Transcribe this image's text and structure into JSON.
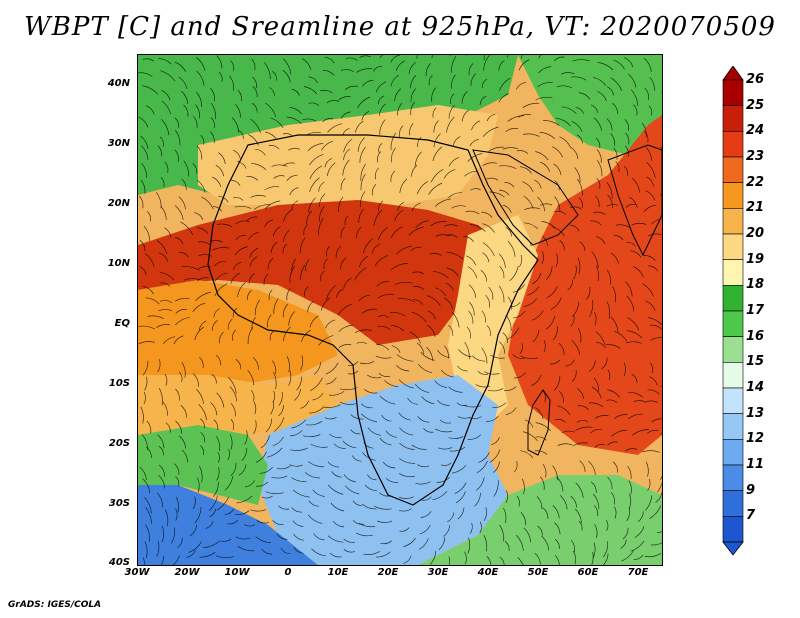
{
  "title": "WBPT [C] and Sreamline at 925hPa, VT: 2020070509",
  "footer": "GrADS: IGES/COLA",
  "axes": {
    "y_labels": [
      "40N",
      "30N",
      "20N",
      "10N",
      "EQ",
      "10S",
      "20S",
      "30S",
      "40S"
    ],
    "x_labels": [
      "30W",
      "20W",
      "10W",
      "0",
      "10E",
      "20E",
      "30E",
      "40E",
      "50E",
      "60E",
      "70E"
    ]
  },
  "colorbar": {
    "labels": [
      "26",
      "25",
      "24",
      "23",
      "22",
      "21",
      "20",
      "19",
      "18",
      "17",
      "16",
      "15",
      "14",
      "13",
      "12",
      "11",
      "9",
      "7"
    ],
    "colors": [
      "#a80000",
      "#c81e0a",
      "#e63c16",
      "#f06a1e",
      "#f5961e",
      "#f7b44a",
      "#fdd883",
      "#fff5b0",
      "#31b331",
      "#4ec84a",
      "#9be090",
      "#e6fae8",
      "#c3e3fa",
      "#96c8f5",
      "#6eaaf0",
      "#4b8ce6",
      "#2e6fdc",
      "#1e56cf"
    ]
  },
  "map": {
    "background": "#f2b55f",
    "fields": [
      {
        "name": "sahel-hot-band",
        "color": "#d2360f"
      },
      {
        "name": "indian-ocean-hot",
        "color": "#e4471a"
      },
      {
        "name": "southern-cool",
        "color": "#8fc1f0"
      },
      {
        "name": "far-south-blue",
        "color": "#3f80de"
      },
      {
        "name": "north-africa-green",
        "color": "#49b84a"
      }
    ]
  }
}
